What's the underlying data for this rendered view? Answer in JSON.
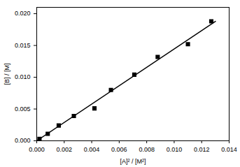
{
  "chart_data": {
    "type": "scatter",
    "x_label": "[A]² / [M²]",
    "y_label": "[B] / [M]",
    "xlim": [
      0,
      0.014
    ],
    "ylim": [
      0,
      0.021
    ],
    "xticks": [
      {
        "value": 0,
        "label": "0.000"
      },
      {
        "value": 0.002,
        "label": "0.002"
      },
      {
        "value": 0.004,
        "label": "0.004"
      },
      {
        "value": 0.006,
        "label": "0.006"
      },
      {
        "value": 0.008,
        "label": "0.008"
      },
      {
        "value": 0.01,
        "label": "0.010"
      },
      {
        "value": 0.012,
        "label": "0.012"
      },
      {
        "value": 0.014,
        "label": "0.014"
      }
    ],
    "yticks": [
      {
        "value": 0,
        "label": "0.000"
      },
      {
        "value": 0.005,
        "label": "0.005"
      },
      {
        "value": 0.01,
        "label": "0.010"
      },
      {
        "value": 0.015,
        "label": "0.015"
      },
      {
        "value": 0.02,
        "label": "0.020"
      }
    ],
    "grid": false,
    "series": [
      {
        "type": "scatter",
        "marker": "square",
        "color": "#000000",
        "x": [
          0.0002,
          0.0008,
          0.0016,
          0.0027,
          0.0042,
          0.0054,
          0.0071,
          0.0088,
          0.011,
          0.0127
        ],
        "values": [
          0.0003,
          0.0011,
          0.0024,
          0.0039,
          0.0051,
          0.008,
          0.0104,
          0.0132,
          0.0152,
          0.0188
        ]
      },
      {
        "type": "line",
        "line_style": "solid",
        "color": "#000000",
        "x": [
          0,
          0.013
        ],
        "values": [
          0,
          0.0188
        ]
      }
    ]
  }
}
